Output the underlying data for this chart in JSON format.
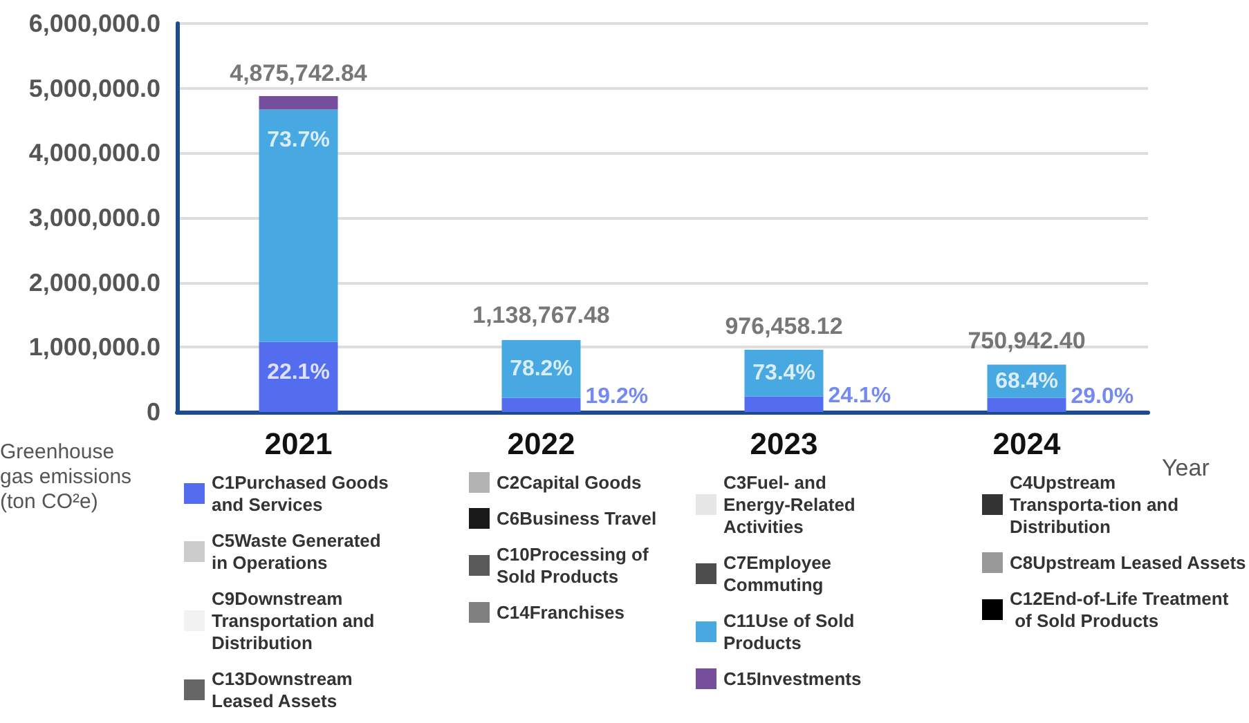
{
  "chart_data": {
    "type": "bar",
    "stacked": true,
    "xlabel": "Year",
    "ylabel": "Greenhouse gas emissions (ton CO²e)",
    "categories": [
      "2021",
      "2022",
      "2023",
      "2024"
    ],
    "ylim": [
      0,
      6000000
    ],
    "yticks": [
      0,
      {
        "value": 1000000,
        "label": "1,000,000.0"
      },
      {
        "value": 2000000,
        "label": "2,000,000.0"
      },
      {
        "value": 3000000,
        "label": "3,000,000.0"
      },
      {
        "value": 4000000,
        "label": "4,000,000.0"
      },
      {
        "value": 5000000,
        "label": "5,000,000.0"
      },
      {
        "value": 6000000,
        "label": "6,000,000.0"
      }
    ],
    "grid": "y",
    "legend": "bottom",
    "annotations": [
      {
        "text": "4,875,742.84",
        "x": "2021",
        "y": 4875742.84
      },
      {
        "text": "1,138,767.48",
        "x": "2022",
        "y": 1138767.48
      },
      {
        "text": "976,458.12",
        "x": "2023",
        "y": 976458.12
      },
      {
        "text": "750,942.40",
        "x": "2024",
        "y": 750942.4
      },
      {
        "text": "22.1%",
        "x": "2021",
        "y": 1080000
      },
      {
        "text": "73.7%",
        "x": "2021",
        "y": 4670000
      },
      {
        "text": "78.2%",
        "x": "2022",
        "y": 1110000
      },
      {
        "text": "19.2%",
        "x": "2022",
        "y": 220000
      },
      {
        "text": "73.4%",
        "x": "2023",
        "y": 960000
      },
      {
        "text": "24.1%",
        "x": "2023",
        "y": 240000
      },
      {
        "text": "68.4%",
        "x": "2024",
        "y": 730000
      },
      {
        "text": "29.0%",
        "x": "2024",
        "y": 220000
      }
    ],
    "series": [
      {
        "name": "C1Purchased Goods and Services",
        "color": "#536dee",
        "values": [
          1080000,
          220000,
          240000,
          220000
        ]
      },
      {
        "name": "C2Capital Goods",
        "color": "#b3b3b3",
        "values": [
          null,
          null,
          null,
          null
        ]
      },
      {
        "name": "C3Fuel- and Energy-Related Activities",
        "color": "#e6e6e6",
        "values": [
          null,
          null,
          null,
          null
        ]
      },
      {
        "name": "C4Upstream Transporta-tion and Distribution",
        "color": "#333333",
        "values": [
          null,
          null,
          null,
          null
        ]
      },
      {
        "name": "C5Waste Generated in Operations",
        "color": "#cccccc",
        "values": [
          null,
          null,
          null,
          null
        ]
      },
      {
        "name": "C6Business Travel",
        "color": "#1a1a1a",
        "values": [
          null,
          null,
          null,
          null
        ]
      },
      {
        "name": "C7Employee Commuting",
        "color": "#4d4d4d",
        "values": [
          null,
          null,
          null,
          null
        ]
      },
      {
        "name": "C8Upstream Leased Assets",
        "color": "#999999",
        "values": [
          null,
          null,
          null,
          null
        ]
      },
      {
        "name": "C9Downstream Transportation and Distribution",
        "color": "#f2f2f2",
        "values": [
          null,
          null,
          null,
          null
        ]
      },
      {
        "name": "C10Processing of Sold Products",
        "color": "#595959",
        "values": [
          null,
          null,
          null,
          null
        ]
      },
      {
        "name": "C11Use of Sold Products",
        "color": "#47a8e2",
        "values": [
          3590000,
          890000,
          720000,
          510000
        ]
      },
      {
        "name": "C12End-of-Life Treatment of Sold Products",
        "color": "#000000",
        "values": [
          null,
          null,
          null,
          null
        ]
      },
      {
        "name": "C13Downstream Leased Assets",
        "color": "#666666",
        "values": [
          null,
          null,
          null,
          null
        ]
      },
      {
        "name": "C14Franchises",
        "color": "#808080",
        "values": [
          null,
          null,
          null,
          null
        ]
      },
      {
        "name": "C15Investments",
        "color": "#764f9c",
        "values": [
          210000,
          null,
          null,
          null
        ]
      }
    ]
  }
}
